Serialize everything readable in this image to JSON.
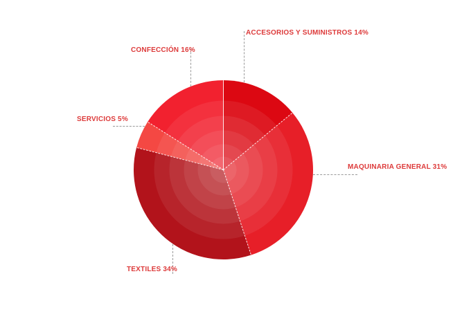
{
  "figure": {
    "background_color": "#ffffff",
    "label_text_color": "#dd3a3a",
    "leader_line_color": "#999999",
    "slice_separator_color": "rgba(255,255,255,0.9)"
  },
  "chart_data": {
    "type": "pie",
    "title": "",
    "direction": "clockwise",
    "start_angle_deg": 0,
    "legend": "none (labels placed around pie with dashed leader lines)",
    "categories": [
      "ACCESORIOS Y SUMINISTROS",
      "MAQUINARIA GENERAL",
      "TEXTILES",
      "SERVICIOS",
      "CONFECCIÓN"
    ],
    "values": [
      14,
      31,
      34,
      5,
      16
    ],
    "display_labels": [
      "ACCESORIOS Y SUMINISTROS 14%",
      "MAQUINARIA GENERAL 31%",
      "TEXTILES 34%",
      "SERVICIOS 5%",
      "CONFECCIÓN 16%"
    ],
    "slice_colors": [
      "#dc0812",
      "#e71f28",
      "#b2131b",
      "#f44843",
      "#f2212f"
    ],
    "center_overlay": "concentric translucent white circles (bullseye highlight at pie center)"
  }
}
